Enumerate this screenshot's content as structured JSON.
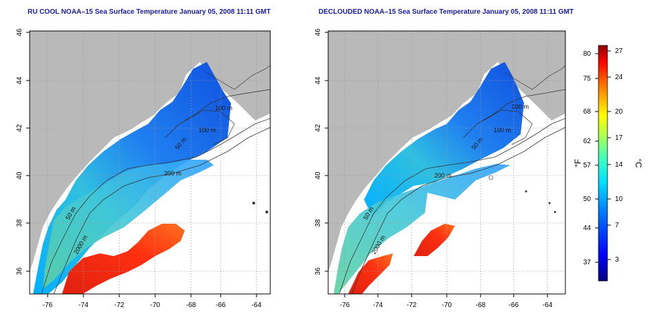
{
  "maps": [
    {
      "title": "RU COOL NOAA–15 Sea Surface Temperature January 05, 2008 11:11 GMT",
      "x_ticks": [
        "-76",
        "-74",
        "-72",
        "-70",
        "-68",
        "-66",
        "-64"
      ],
      "y_ticks": [
        "46",
        "44",
        "42",
        "40",
        "38",
        "36"
      ],
      "contour_labels": [
        "100 m",
        "100 m",
        "50 m",
        "200 m",
        "50 m",
        "2000 m"
      ]
    },
    {
      "title": "DECLOUDED NOAA–15 Sea Surface Temperature January 05, 2008 11:11 GMT",
      "x_ticks": [
        "-76",
        "-74",
        "-72",
        "-70",
        "-68",
        "-66",
        "-64"
      ],
      "y_ticks": [
        "46",
        "44",
        "42",
        "40",
        "38",
        "36"
      ],
      "contour_labels": [
        "100 m",
        "100 m",
        "50 m",
        "200 m",
        "50 m",
        "2000 m"
      ]
    }
  ],
  "colorbar": {
    "fahrenheit_label": "°F",
    "celsius_label": "°C",
    "fahrenheit_ticks": [
      "80",
      "75",
      "68",
      "62",
      "57",
      "50",
      "44",
      "37"
    ],
    "celsius_ticks": [
      "27",
      "24",
      "20",
      "17",
      "14",
      "10",
      "7",
      "3"
    ]
  },
  "colors": {
    "land": "#b9b9b9",
    "title": "#1a1aa8",
    "scale": [
      "#00007f",
      "#0000ff",
      "#0080ff",
      "#00ffff",
      "#80ff80",
      "#ffff00",
      "#ff8000",
      "#ff0000",
      "#7f0000"
    ]
  }
}
